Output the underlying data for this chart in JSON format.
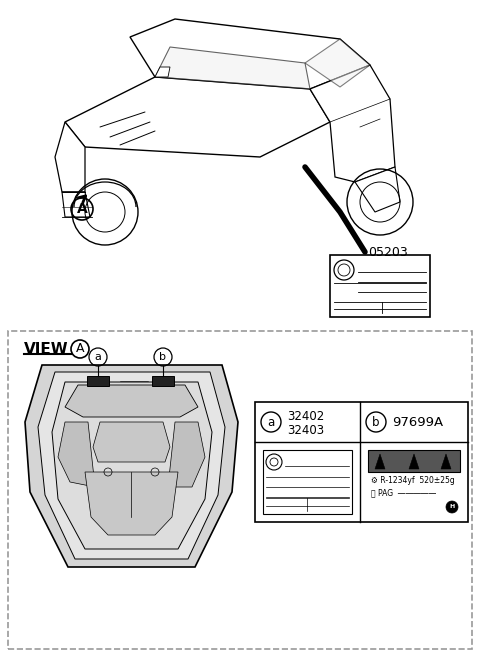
{
  "bg_color": "#ffffff",
  "dashed_border_color": "#999999",
  "line_color": "#000000",
  "part_num_a1": "32402",
  "part_num_a2": "32403",
  "part_num_b": "97699A",
  "label_05203": "05203",
  "view_label": "VIEW",
  "circle_A_text": "A",
  "circle_a_text": "a",
  "circle_b_text": "b",
  "ref_line1": "R-1234yf  520±25g",
  "ref_line2": "PAG",
  "gray_car_body": "#e8e8e8",
  "gray_hood": "#d0d0d0",
  "gray_dark": "#a0a0a0",
  "dark_label": "#444444"
}
